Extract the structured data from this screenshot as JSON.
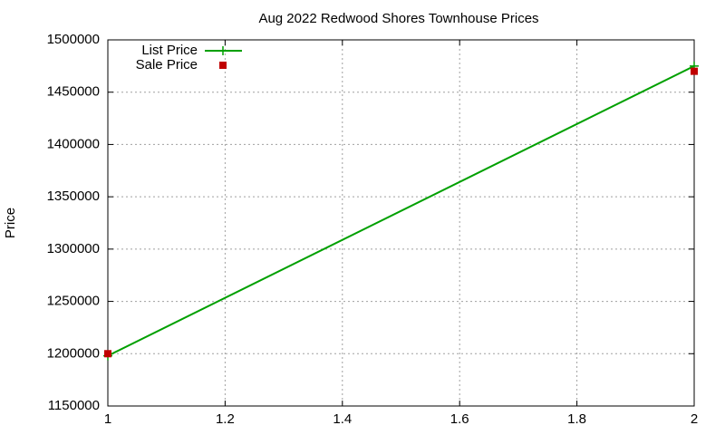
{
  "chart_data": {
    "type": "line",
    "title": "Aug 2022 Redwood Shores Townhouse Prices",
    "y_label": "Price",
    "x": [
      1,
      2
    ],
    "series": [
      {
        "name": "List Price",
        "color": "#00a000",
        "style": "linespoints",
        "values": [
          1198000,
          1475000
        ]
      },
      {
        "name": "Sale Price",
        "color": "#c00000",
        "style": "points",
        "values": [
          1200000,
          1470000
        ]
      }
    ],
    "xlim": [
      1,
      2
    ],
    "xticks": [
      1,
      1.2,
      1.4,
      1.6,
      1.8,
      2
    ],
    "ylim": [
      1150000,
      1500000
    ],
    "yticks": [
      1150000,
      1200000,
      1250000,
      1300000,
      1350000,
      1400000,
      1450000,
      1500000
    ],
    "grid": true,
    "legend": "top-left"
  }
}
